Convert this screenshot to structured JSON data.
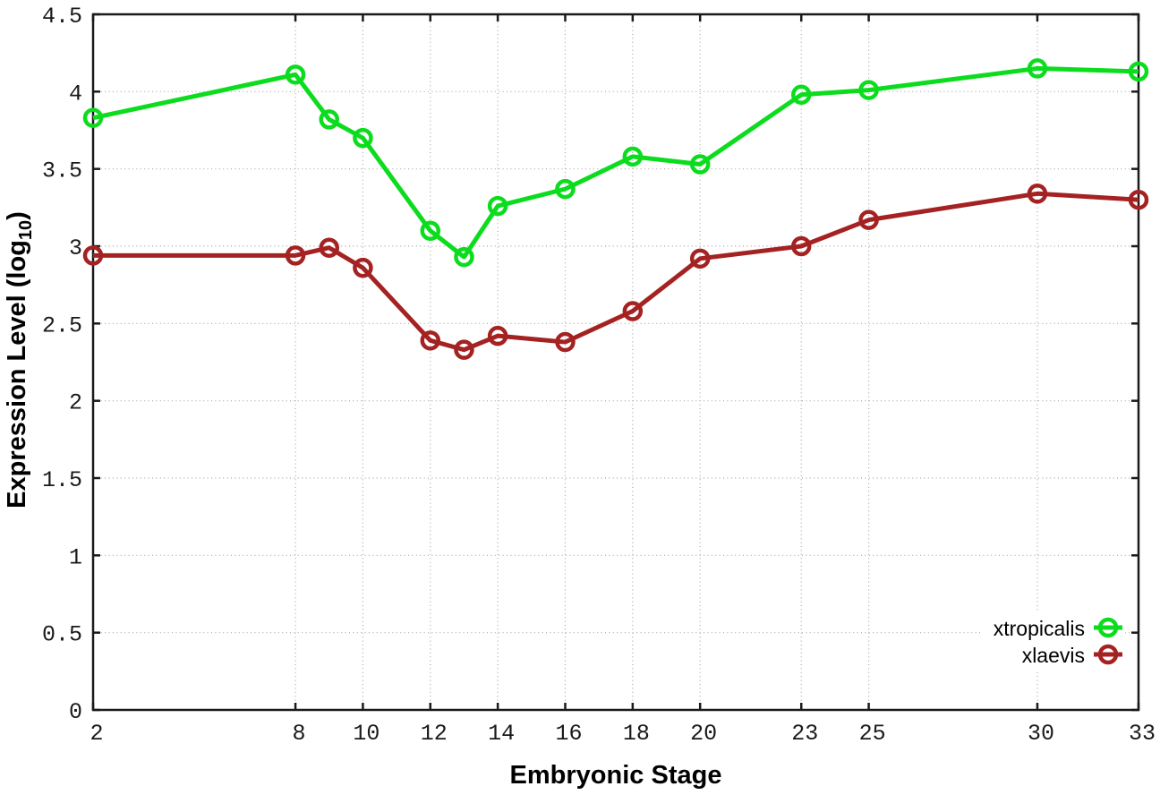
{
  "chart_data": {
    "type": "line",
    "xlabel": "Embryonic Stage",
    "ylabel": {
      "prefix": "Expression Level (log",
      "subscript": "10",
      "suffix": ")"
    },
    "x": [
      2,
      8,
      9,
      10,
      12,
      13,
      14,
      16,
      18,
      20,
      23,
      25,
      30,
      33
    ],
    "xticks": [
      2,
      8,
      10,
      12,
      14,
      16,
      18,
      20,
      23,
      25,
      30,
      33
    ],
    "yticks": [
      0,
      0.5,
      1,
      1.5,
      2,
      2.5,
      3,
      3.5,
      4,
      4.5
    ],
    "xlim": [
      2,
      33
    ],
    "ylim": [
      0,
      4.5
    ],
    "grid": true,
    "legend_position": "bottom-right",
    "series": [
      {
        "name": "xtropicalis",
        "color": "#0cdc1e",
        "values": [
          3.83,
          4.11,
          3.82,
          3.7,
          3.1,
          2.93,
          3.26,
          3.37,
          3.58,
          3.53,
          3.98,
          4.01,
          4.15,
          4.13
        ]
      },
      {
        "name": "xlaevis",
        "color": "#a42222",
        "values": [
          2.94,
          2.94,
          2.99,
          2.86,
          2.39,
          2.33,
          2.42,
          2.38,
          2.58,
          2.92,
          3.0,
          3.17,
          3.34,
          3.3
        ]
      }
    ],
    "colors": {
      "border": "#1a1a1a",
      "grid": "#a8a8a8",
      "tick_label": "#1a1a1a",
      "title": "#000000",
      "background": "#ffffff"
    }
  }
}
